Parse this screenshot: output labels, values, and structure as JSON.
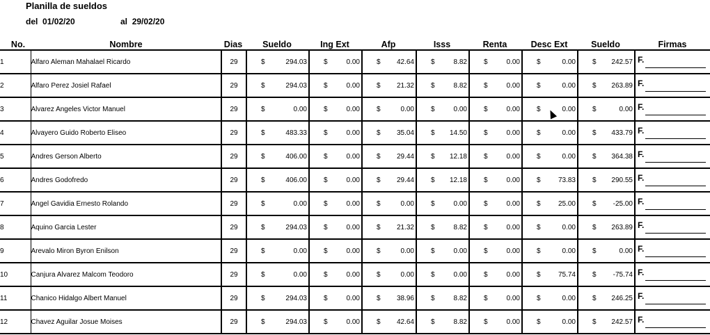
{
  "report": {
    "title": "Planilla de sueldos",
    "from_label": "del",
    "from_date": "01/02/20",
    "to_label": "al",
    "to_date": "29/02/20"
  },
  "columns": [
    "No.",
    "Nombre",
    "Dias",
    "Sueldo",
    "Ing Ext",
    "Afp",
    "Isss",
    "Renta",
    "Desc Ext",
    "Sueldo",
    "Firmas"
  ],
  "currency": "$",
  "signature_prefix": "F.",
  "rows": [
    {
      "no": "1",
      "name": "Alfaro Aleman Mahalael Ricardo",
      "days": "29",
      "sueldo": "294.03",
      "ing": "0.00",
      "afp": "42.64",
      "isss": "8.82",
      "renta": "0.00",
      "desc": "0.00",
      "neto": "242.57"
    },
    {
      "no": "2",
      "name": "Alfaro Perez Josiel Rafael",
      "days": "29",
      "sueldo": "294.03",
      "ing": "0.00",
      "afp": "21.32",
      "isss": "8.82",
      "renta": "0.00",
      "desc": "0.00",
      "neto": "263.89"
    },
    {
      "no": "3",
      "name": "Alvarez Angeles Victor Manuel",
      "days": "29",
      "sueldo": "0.00",
      "ing": "0.00",
      "afp": "0.00",
      "isss": "0.00",
      "renta": "0.00",
      "desc": "0.00",
      "neto": "0.00"
    },
    {
      "no": "4",
      "name": "Alvayero Guido Roberto Eliseo",
      "days": "29",
      "sueldo": "483.33",
      "ing": "0.00",
      "afp": "35.04",
      "isss": "14.50",
      "renta": "0.00",
      "desc": "0.00",
      "neto": "433.79"
    },
    {
      "no": "5",
      "name": "Andres  Gerson Alberto",
      "days": "29",
      "sueldo": "406.00",
      "ing": "0.00",
      "afp": "29.44",
      "isss": "12.18",
      "renta": "0.00",
      "desc": "0.00",
      "neto": "364.38"
    },
    {
      "no": "6",
      "name": "Andres  Godofredo",
      "days": "29",
      "sueldo": "406.00",
      "ing": "0.00",
      "afp": "29.44",
      "isss": "12.18",
      "renta": "0.00",
      "desc": "73.83",
      "neto": "290.55"
    },
    {
      "no": "7",
      "name": "Angel Gavidia Ernesto Rolando",
      "days": "29",
      "sueldo": "0.00",
      "ing": "0.00",
      "afp": "0.00",
      "isss": "0.00",
      "renta": "0.00",
      "desc": "25.00",
      "neto": "-25.00"
    },
    {
      "no": "8",
      "name": "Aquino Garcia Lester",
      "days": "29",
      "sueldo": "294.03",
      "ing": "0.00",
      "afp": "21.32",
      "isss": "8.82",
      "renta": "0.00",
      "desc": "0.00",
      "neto": "263.89"
    },
    {
      "no": "9",
      "name": "Arevalo Miron Byron Enilson",
      "days": "29",
      "sueldo": "0.00",
      "ing": "0.00",
      "afp": "0.00",
      "isss": "0.00",
      "renta": "0.00",
      "desc": "0.00",
      "neto": "0.00"
    },
    {
      "no": "10",
      "name": "Canjura Alvarez Malcom Teodoro",
      "days": "29",
      "sueldo": "0.00",
      "ing": "0.00",
      "afp": "0.00",
      "isss": "0.00",
      "renta": "0.00",
      "desc": "75.74",
      "neto": "-75.74"
    },
    {
      "no": "11",
      "name": "Chanico Hidalgo Albert Manuel",
      "days": "29",
      "sueldo": "294.03",
      "ing": "0.00",
      "afp": "38.96",
      "isss": "8.82",
      "renta": "0.00",
      "desc": "0.00",
      "neto": "246.25"
    },
    {
      "no": "12",
      "name": "Chavez Aguilar Josue Moises",
      "days": "29",
      "sueldo": "294.03",
      "ing": "0.00",
      "afp": "42.64",
      "isss": "8.82",
      "renta": "0.00",
      "desc": "0.00",
      "neto": "242.57"
    }
  ]
}
